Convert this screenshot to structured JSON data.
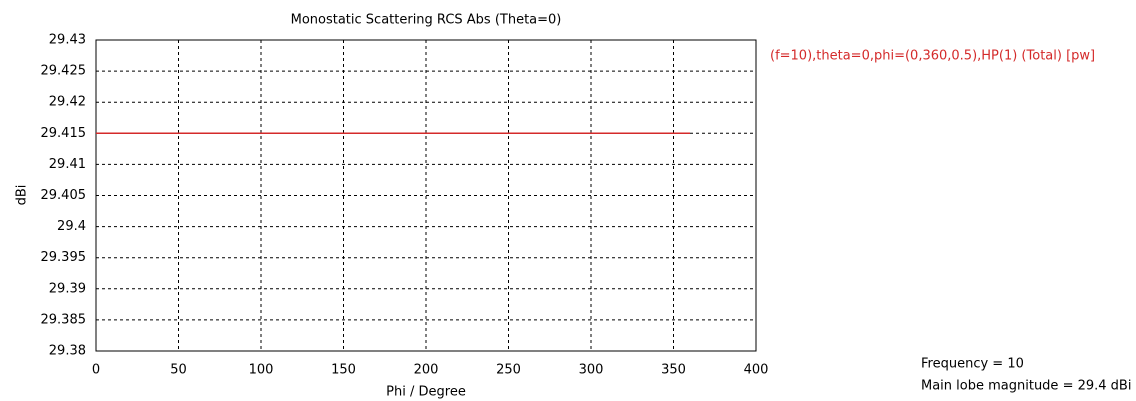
{
  "chart_data": {
    "type": "line",
    "title": "Monostatic Scattering RCS Abs (Theta=0)",
    "xlabel": "Phi / Degree",
    "ylabel": "dBi",
    "x": [
      0,
      360
    ],
    "series": [
      {
        "name": "(f=10),theta=0,phi=(0,360,0.5),HP(1) (Total) [pw]",
        "color": "#d42a2a",
        "values": [
          29.415,
          29.415
        ]
      }
    ],
    "xlim": [
      0,
      400
    ],
    "xticks": [
      0,
      50,
      100,
      150,
      200,
      250,
      300,
      350,
      400
    ],
    "ylim": [
      29.38,
      29.43
    ],
    "yticks": [
      29.38,
      29.385,
      29.39,
      29.395,
      29.4,
      29.405,
      29.41,
      29.415,
      29.42,
      29.425,
      29.43
    ],
    "grid": true,
    "annotations": [
      "Frequency = 10",
      "Main lobe magnitude = 29.4 dBi"
    ]
  }
}
